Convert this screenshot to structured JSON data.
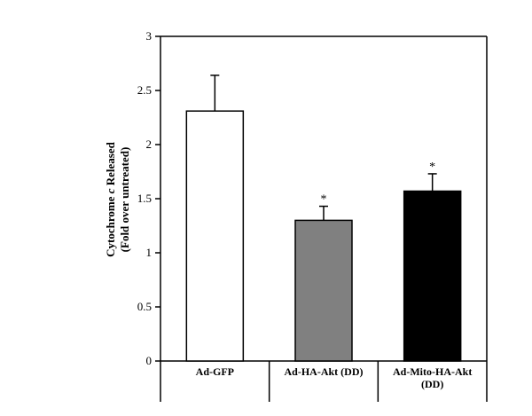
{
  "chart_data": {
    "type": "bar",
    "categories": [
      "Ad-GFP",
      "Ad-HA-Akt (DD)",
      "Ad-Mito-HA-Akt (DD)"
    ],
    "category_lines": [
      [
        "Ad-GFP"
      ],
      [
        "Ad-HA-Akt (DD)"
      ],
      [
        "Ad-Mito-HA-Akt",
        "(DD)"
      ]
    ],
    "values": [
      2.31,
      1.3,
      1.57
    ],
    "errors": [
      0.33,
      0.13,
      0.16
    ],
    "bar_colors": [
      "#ffffff",
      "#808080",
      "#000000"
    ],
    "annotations": [
      "",
      "*",
      "*"
    ],
    "ylabel_line1_pre": "Cytochrome ",
    "ylabel_line1_italic": "c",
    "ylabel_line1_post": " Released",
    "ylabel_line2": "(Fold over untreated)",
    "ylim": [
      0,
      3
    ],
    "yticks": [
      0,
      0.5,
      1,
      1.5,
      2,
      2.5,
      3
    ],
    "ytick_labels": [
      "0",
      "0.5",
      "1",
      "1.5",
      "2",
      "2.5",
      "3"
    ],
    "grid": false,
    "legend": "none"
  }
}
